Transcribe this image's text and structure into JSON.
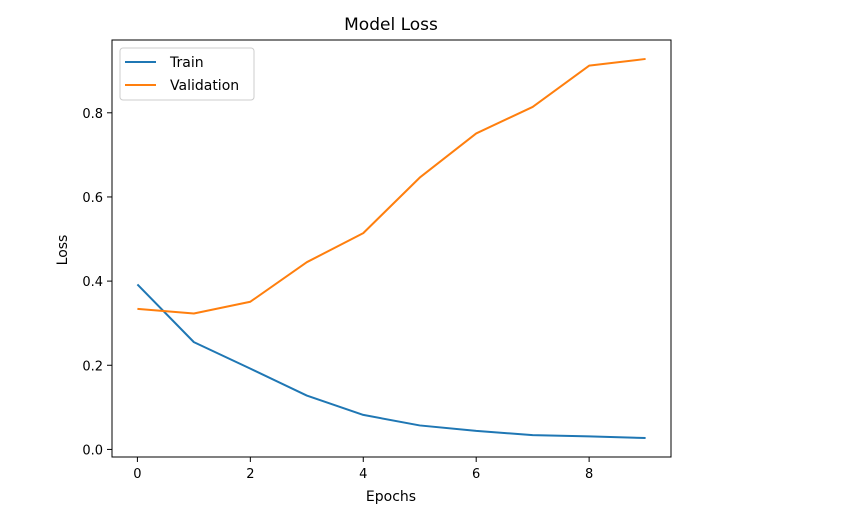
{
  "chart_data": {
    "type": "line",
    "title": "Model Loss",
    "xlabel": "Epochs",
    "ylabel": "Loss",
    "x": [
      0,
      1,
      2,
      3,
      4,
      5,
      6,
      7,
      8,
      9
    ],
    "series": [
      {
        "name": "Train",
        "color": "#1f77b4",
        "values": [
          0.392,
          0.255,
          0.192,
          0.128,
          0.082,
          0.057,
          0.044,
          0.034,
          0.031,
          0.027
        ]
      },
      {
        "name": "Validation",
        "color": "#ff7f0e",
        "values": [
          0.334,
          0.323,
          0.351,
          0.445,
          0.514,
          0.646,
          0.751,
          0.814,
          0.912,
          0.928
        ]
      }
    ],
    "xlim": [
      -0.45,
      9.45
    ],
    "ylim": [
      -0.018,
      0.973
    ],
    "xticks": [
      0,
      2,
      4,
      6,
      8
    ],
    "xtick_labels": [
      "0",
      "2",
      "4",
      "6",
      "8"
    ],
    "yticks": [
      0.0,
      0.2,
      0.4,
      0.6,
      0.8
    ],
    "ytick_labels": [
      "0.0",
      "0.2",
      "0.4",
      "0.6",
      "0.8"
    ],
    "grid": false,
    "legend_position": "top-left"
  }
}
